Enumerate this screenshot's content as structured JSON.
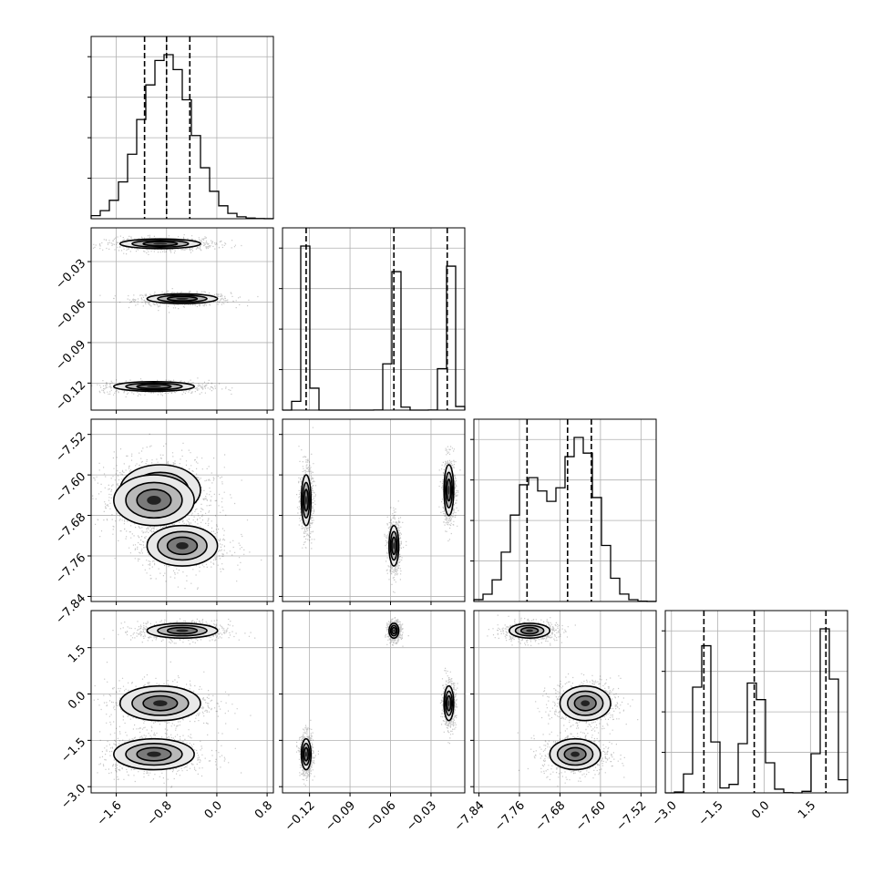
{
  "chart_data": {
    "type": "corner",
    "parameters": [
      {
        "range": [
          -2.0,
          0.9
        ],
        "ticks": [
          -1.6,
          -0.8,
          0.0,
          0.8
        ],
        "tick_labels": [
          "−1.6",
          "−0.8",
          "0.0",
          "0.8"
        ],
        "quantiles": [
          -1.15,
          -0.8,
          -0.43
        ],
        "modes": [
          {
            "mean": -0.8,
            "sd": 0.4,
            "w": 1.0
          }
        ]
      },
      {
        "range": [
          -0.14,
          -0.005
        ],
        "ticks": [
          -0.12,
          -0.09,
          -0.06,
          -0.03
        ],
        "tick_labels": [
          "−0.12",
          "−0.09",
          "−0.06",
          "−0.03"
        ],
        "quantiles": [
          -0.1225,
          -0.0575,
          -0.018
        ],
        "modes": [
          {
            "mean": -0.1225,
            "sd": 0.0018,
            "w": 1.0
          },
          {
            "mean": -0.0575,
            "sd": 0.0018,
            "w": 1.0
          },
          {
            "mean": -0.0168,
            "sd": 0.0018,
            "w": 1.0
          }
        ]
      },
      {
        "range": [
          -7.85,
          -7.49
        ],
        "ticks": [
          -7.84,
          -7.76,
          -7.68,
          -7.6,
          -7.52
        ],
        "tick_labels": [
          "−7.84",
          "−7.76",
          "−7.68",
          "−7.60",
          "−7.52"
        ],
        "quantiles": [
          -7.745,
          -7.665,
          -7.618
        ],
        "modes": [
          {
            "mean": -7.74,
            "sd": 0.035,
            "w": 0.75
          },
          {
            "mean": -7.64,
            "sd": 0.035,
            "w": 1.0
          }
        ]
      },
      {
        "range": [
          -3.2,
          2.7
        ],
        "ticks": [
          -3.0,
          -1.5,
          0.0,
          1.5
        ],
        "tick_labels": [
          "−3.0",
          "−1.5",
          "0.0",
          "1.5"
        ],
        "quantiles": [
          -1.95,
          -0.32,
          2.0
        ],
        "modes": [
          {
            "mean": -1.95,
            "sd": 0.25,
            "w": 1.0
          },
          {
            "mean": -0.3,
            "sd": 0.3,
            "w": 0.75
          },
          {
            "mean": 2.05,
            "sd": 0.22,
            "w": 1.15
          }
        ]
      }
    ],
    "clusters": [
      {
        "p": [
          -0.55,
          -0.0575,
          -7.74,
          2.05
        ],
        "sd": [
          0.28,
          0.0018,
          0.02,
          0.12
        ],
        "w": 1.0
      },
      {
        "p": [
          -0.9,
          -0.0168,
          -7.63,
          -0.3
        ],
        "sd": [
          0.32,
          0.0018,
          0.025,
          0.28
        ],
        "w": 1.0
      },
      {
        "p": [
          -1.0,
          -0.1225,
          -7.65,
          -1.95
        ],
        "sd": [
          0.32,
          0.0018,
          0.025,
          0.25
        ],
        "w": 1.0
      }
    ],
    "ax_cols_labels": [
      0,
      1,
      2,
      3
    ],
    "grid": true
  }
}
